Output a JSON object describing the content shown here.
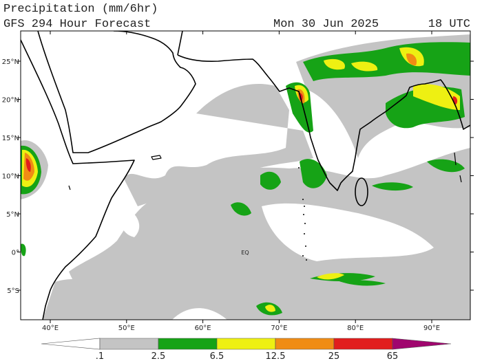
{
  "header": {
    "title": "Precipitation (mm/6hr)",
    "subtitle": "GFS 294 Hour Forecast",
    "date": "Mon 30 Jun 2025",
    "time": "18 UTC"
  },
  "map": {
    "lon_labels": [
      "40°E",
      "50°E",
      "60°E",
      "70°E",
      "80°E",
      "90°E"
    ],
    "lat_labels": [
      "25°N",
      "20°N",
      "15°N",
      "10°N",
      "5°N",
      "0°",
      "5°S"
    ],
    "equator_label": "EQ"
  },
  "legend": {
    "labels": [
      ".1",
      "2.5",
      "6.5",
      "12.5",
      "25",
      "65"
    ],
    "colors": [
      "#ffffff",
      "#c4c4c4",
      "#16a316",
      "#eef012",
      "#f08c14",
      "#e11d1d",
      "#a0066e"
    ]
  }
}
